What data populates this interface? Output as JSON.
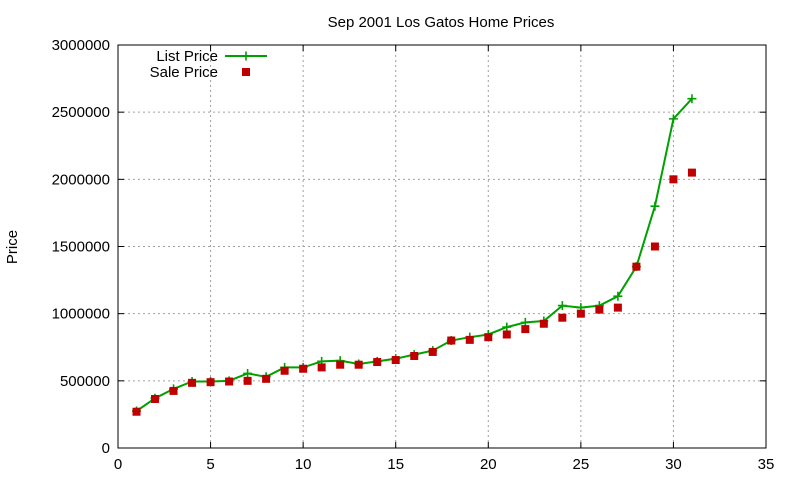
{
  "chart_data": {
    "type": "line",
    "title": "Sep 2001 Los Gatos Home Prices",
    "xlabel": "",
    "ylabel": "Price",
    "xlim": [
      0,
      35
    ],
    "ylim": [
      0,
      3000000
    ],
    "xticks": [
      0,
      5,
      10,
      15,
      20,
      25,
      30,
      35
    ],
    "yticks": [
      0,
      500000,
      1000000,
      1500000,
      2000000,
      2500000,
      3000000
    ],
    "grid": true,
    "legend_position": "top-left",
    "series": [
      {
        "name": "List Price",
        "style": "line+plus",
        "color": "#00a000",
        "x": [
          1,
          2,
          3,
          4,
          5,
          6,
          7,
          8,
          9,
          10,
          11,
          12,
          13,
          14,
          15,
          16,
          17,
          18,
          19,
          20,
          21,
          22,
          23,
          24,
          25,
          26,
          27,
          28,
          29,
          30,
          31
        ],
        "y": [
          275000,
          370000,
          440000,
          495000,
          495000,
          500000,
          555000,
          530000,
          600000,
          600000,
          645000,
          650000,
          625000,
          645000,
          665000,
          695000,
          725000,
          800000,
          825000,
          845000,
          900000,
          935000,
          945000,
          1060000,
          1045000,
          1060000,
          1130000,
          1350000,
          1800000,
          2450000,
          2600000
        ]
      },
      {
        "name": "Sale Price",
        "style": "square",
        "color": "#c00000",
        "x": [
          1,
          2,
          3,
          4,
          5,
          6,
          7,
          8,
          9,
          10,
          11,
          12,
          13,
          14,
          15,
          16,
          17,
          18,
          19,
          20,
          21,
          22,
          23,
          24,
          25,
          26,
          27,
          28,
          29,
          30,
          31
        ],
        "y": [
          270000,
          365000,
          425000,
          485000,
          490000,
          495000,
          500000,
          515000,
          575000,
          590000,
          600000,
          620000,
          620000,
          640000,
          655000,
          685000,
          715000,
          800000,
          805000,
          825000,
          845000,
          885000,
          925000,
          970000,
          1000000,
          1030000,
          1045000,
          1350000,
          1500000,
          2000000,
          2050000
        ]
      }
    ]
  }
}
